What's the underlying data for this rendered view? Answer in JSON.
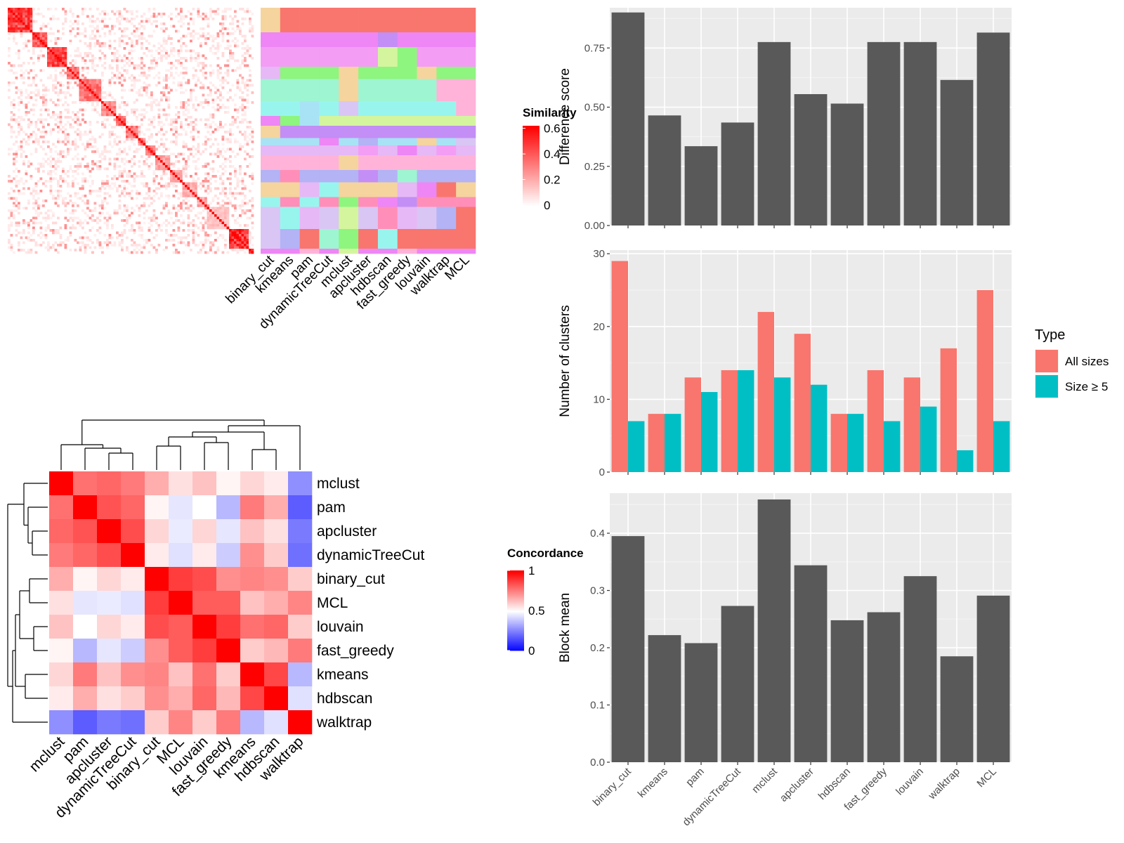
{
  "chart_data": [
    {
      "type": "heatmap",
      "id": "similarity-heatmap",
      "legend_title": "Similarity",
      "legend_ticks": [
        "0",
        "0.2",
        "0.4",
        "0.6"
      ],
      "colors": {
        "high": "#ff0000",
        "low": "#ffffff"
      },
      "columns": [
        "binary_cut",
        "kmeans",
        "pam",
        "dynamicTreeCut",
        "mclust",
        "apcluster",
        "hdbscan",
        "fast_greedy",
        "louvain",
        "walktrap",
        "MCL"
      ],
      "blocks": [
        {
          "size": 10,
          "strength": 0.62
        },
        {
          "size": 6,
          "strength": 0.55
        },
        {
          "size": 8,
          "strength": 0.6
        },
        {
          "size": 5,
          "strength": 0.5
        },
        {
          "size": 9,
          "strength": 0.45
        },
        {
          "size": 6,
          "strength": 0.4
        },
        {
          "size": 4,
          "strength": 0.5
        },
        {
          "size": 5,
          "strength": 0.45
        },
        {
          "size": 3,
          "strength": 0.4
        },
        {
          "size": 4,
          "strength": 0.45
        },
        {
          "size": 6,
          "strength": 0.3
        },
        {
          "size": 5,
          "strength": 0.3
        },
        {
          "size": 6,
          "strength": 0.3
        },
        {
          "size": 4,
          "strength": 0.3
        },
        {
          "size": 9,
          "strength": 0.2
        },
        {
          "size": 8,
          "strength": 0.65
        },
        {
          "size": 2,
          "strength": 0.55
        }
      ]
    },
    {
      "type": "heatmap",
      "id": "concordance-heatmap",
      "legend_title": "Concordance",
      "legend_ticks": [
        "0",
        "0.5",
        "1"
      ],
      "colors": {
        "high": "#ff0000",
        "mid": "#ffffff",
        "low": "#0000ff"
      },
      "labels": [
        "mclust",
        "pam",
        "apcluster",
        "dynamicTreeCut",
        "binary_cut",
        "MCL",
        "louvain",
        "fast_greedy",
        "kmeans",
        "hdbscan",
        "walktrap"
      ],
      "matrix": [
        [
          1.0,
          0.78,
          0.8,
          0.76,
          0.66,
          0.56,
          0.62,
          0.52,
          0.58,
          0.54,
          0.28
        ],
        [
          0.78,
          1.0,
          0.84,
          0.8,
          0.52,
          0.45,
          0.5,
          0.36,
          0.76,
          0.66,
          0.18
        ],
        [
          0.8,
          0.84,
          1.0,
          0.85,
          0.58,
          0.46,
          0.58,
          0.45,
          0.62,
          0.56,
          0.24
        ],
        [
          0.76,
          0.8,
          0.85,
          1.0,
          0.54,
          0.44,
          0.54,
          0.4,
          0.72,
          0.6,
          0.22
        ],
        [
          0.66,
          0.52,
          0.58,
          0.54,
          1.0,
          0.88,
          0.85,
          0.72,
          0.74,
          0.72,
          0.6
        ],
        [
          0.56,
          0.45,
          0.46,
          0.44,
          0.88,
          1.0,
          0.82,
          0.82,
          0.62,
          0.66,
          0.74
        ],
        [
          0.62,
          0.5,
          0.58,
          0.54,
          0.85,
          0.82,
          1.0,
          0.88,
          0.78,
          0.8,
          0.6
        ],
        [
          0.52,
          0.36,
          0.45,
          0.4,
          0.72,
          0.82,
          0.88,
          1.0,
          0.6,
          0.64,
          0.76
        ],
        [
          0.58,
          0.76,
          0.62,
          0.72,
          0.74,
          0.62,
          0.78,
          0.6,
          1.0,
          0.86,
          0.36
        ],
        [
          0.54,
          0.66,
          0.56,
          0.6,
          0.72,
          0.66,
          0.8,
          0.64,
          0.86,
          1.0,
          0.44
        ],
        [
          0.28,
          0.18,
          0.24,
          0.22,
          0.6,
          0.74,
          0.6,
          0.76,
          0.36,
          0.44,
          1.0
        ]
      ]
    },
    {
      "type": "bar",
      "id": "difference-score",
      "categories": [
        "binary_cut",
        "kmeans",
        "pam",
        "dynamicTreeCut",
        "mclust",
        "apcluster",
        "hdbscan",
        "fast_greedy",
        "louvain",
        "walktrap",
        "MCL"
      ],
      "values": [
        0.9,
        0.465,
        0.335,
        0.435,
        0.775,
        0.555,
        0.515,
        0.775,
        0.775,
        0.615,
        0.815
      ],
      "ylabel": "Difference score",
      "ylim": [
        0,
        0.92
      ],
      "yticks": [
        "0.00",
        "0.25",
        "0.50",
        "0.75"
      ],
      "color": "#595959",
      "grid": true
    },
    {
      "type": "bar",
      "id": "number-of-clusters",
      "categories": [
        "binary_cut",
        "kmeans",
        "pam",
        "dynamicTreeCut",
        "mclust",
        "apcluster",
        "hdbscan",
        "fast_greedy",
        "louvain",
        "walktrap",
        "MCL"
      ],
      "series": [
        {
          "name": "All sizes",
          "values": [
            29,
            8,
            13,
            14,
            22,
            19,
            8,
            14,
            13,
            17,
            25
          ],
          "color": "#F8766D"
        },
        {
          "name": "Size ≥ 5",
          "values": [
            7,
            8,
            11,
            14,
            13,
            12,
            8,
            7,
            9,
            3,
            7
          ],
          "color": "#00BFC4"
        }
      ],
      "ylabel": "Number of clusters",
      "ylim": [
        0,
        30.5
      ],
      "yticks": [
        "0",
        "10",
        "20",
        "30"
      ],
      "legend_title": "Type",
      "legend_position": "right",
      "grid": true
    },
    {
      "type": "bar",
      "id": "block-mean",
      "categories": [
        "binary_cut",
        "kmeans",
        "pam",
        "dynamicTreeCut",
        "mclust",
        "apcluster",
        "hdbscan",
        "fast_greedy",
        "louvain",
        "walktrap",
        "MCL"
      ],
      "values": [
        0.395,
        0.222,
        0.208,
        0.273,
        0.459,
        0.344,
        0.248,
        0.262,
        0.325,
        0.185,
        0.291
      ],
      "ylabel": "Block mean",
      "ylim": [
        0,
        0.47
      ],
      "yticks": [
        "0.0",
        "0.1",
        "0.2",
        "0.3",
        "0.4"
      ],
      "color": "#595959",
      "grid": true
    }
  ]
}
